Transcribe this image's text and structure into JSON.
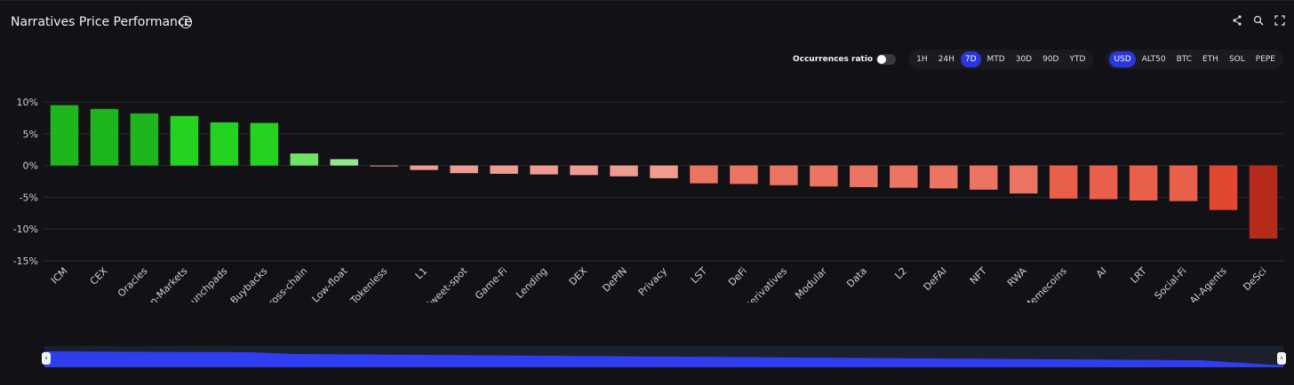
{
  "header": {
    "title": "Narratives Price Performance"
  },
  "controls": {
    "ratio_label": "Occurrences ratio",
    "timeframes": [
      "1H",
      "24H",
      "7D",
      "MTD",
      "30D",
      "90D",
      "YTD"
    ],
    "timeframe_active": "7D",
    "bases": [
      "USD",
      "ALT50",
      "BTC",
      "ETH",
      "SOL",
      "PEPE"
    ],
    "base_active": "USD"
  },
  "colors": {
    "positive": "#22c41f",
    "negative": "#e8664f",
    "accent": "#2a35e0"
  },
  "chart_data": {
    "type": "bar",
    "title": "Narratives Price Performance",
    "categories": [
      "ICM",
      "CEX",
      "Oracles",
      "Prediction-Markets",
      "Launchpads",
      "Buybacks",
      "Cross-chain",
      "Low-float",
      "Tokenless",
      "L1",
      "Sweet-spot",
      "Game-Fi",
      "Lending",
      "DEX",
      "DePIN",
      "Privacy",
      "LST",
      "DeFi",
      "Derivatives",
      "Modular",
      "Data",
      "L2",
      "DeFAI",
      "NFT",
      "RWA",
      "Memecoins",
      "AI",
      "LRT",
      "Social-Fi",
      "AI-Agents",
      "DeSci"
    ],
    "values": [
      9.5,
      8.9,
      8.2,
      7.8,
      6.8,
      6.7,
      1.9,
      1.0,
      -0.1,
      -0.7,
      -1.2,
      -1.3,
      -1.4,
      -1.5,
      -1.7,
      -2.0,
      -2.8,
      -2.9,
      -3.1,
      -3.3,
      -3.4,
      -3.5,
      -3.6,
      -3.8,
      -4.4,
      -5.2,
      -5.3,
      -5.5,
      -5.6,
      -7.0,
      -11.5
    ],
    "ylim": [
      -15,
      10
    ],
    "yticks": [
      "10%",
      "5%",
      "0%",
      "-5%",
      "-10%",
      "-15%"
    ],
    "ytick_values": [
      10,
      5,
      0,
      -5,
      -10,
      -15
    ],
    "xlabel": "",
    "ylabel": ""
  }
}
